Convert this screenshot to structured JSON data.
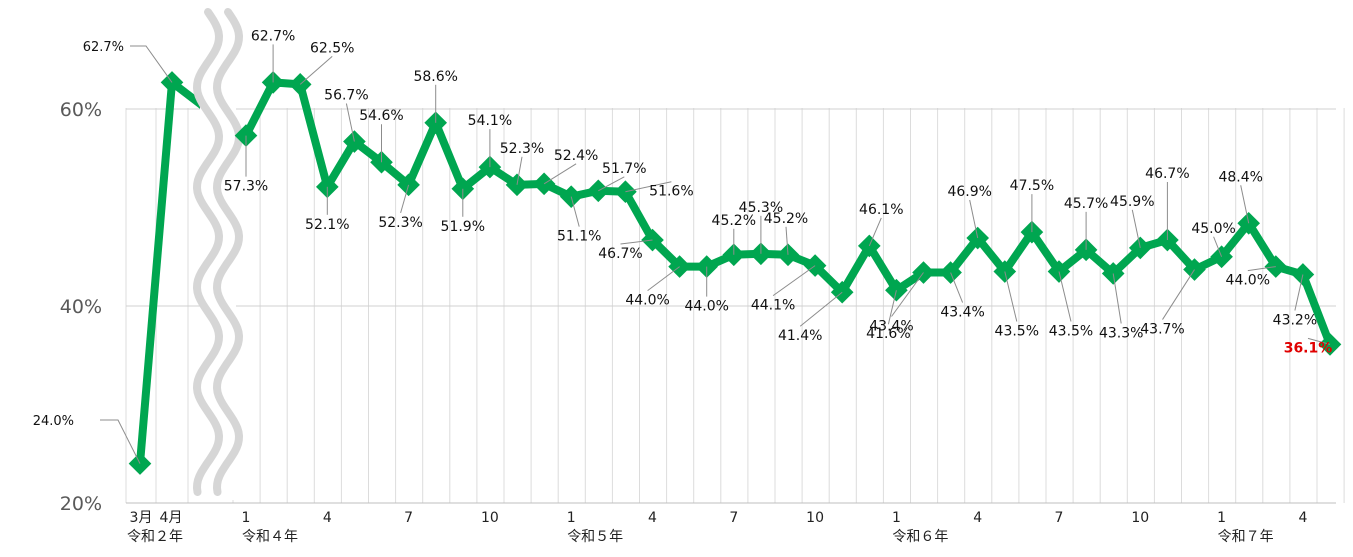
{
  "chart_data": {
    "type": "line",
    "colors": {
      "line": "#00a650",
      "grid": "#d0d0d0",
      "break": "#d6d6d6",
      "leader": "#8c8c8c",
      "highlight": "#e00000"
    },
    "y_ticks": [
      "20%",
      "40%",
      "60%"
    ],
    "ylim": [
      20,
      64
    ],
    "axis_break": true,
    "grid": true,
    "left_segment": {
      "categories": [
        "3月",
        "4月"
      ],
      "year_label": "令和２年",
      "values": [
        24.0,
        62.7
      ],
      "labels": [
        "24.0%",
        "62.7%"
      ]
    },
    "main_segment": {
      "x_tick_labels": [
        "1",
        "4",
        "7",
        "10",
        "1",
        "4",
        "7",
        "10",
        "1",
        "4",
        "7",
        "10",
        "1",
        "4"
      ],
      "year_labels": [
        "令和４年",
        "令和５年",
        "令和６年",
        "令和７年"
      ],
      "values": [
        57.3,
        62.7,
        62.5,
        52.1,
        56.7,
        54.6,
        52.3,
        58.6,
        51.9,
        54.1,
        52.3,
        52.4,
        51.1,
        51.7,
        51.6,
        46.7,
        44.0,
        44.0,
        45.2,
        45.3,
        45.2,
        44.1,
        41.4,
        46.1,
        41.6,
        43.4,
        43.4,
        46.9,
        43.5,
        47.5,
        43.5,
        45.7,
        43.3,
        45.9,
        46.7,
        43.7,
        45.0,
        48.4,
        44.0,
        43.2,
        36.1
      ],
      "labels": [
        "57.3%",
        "62.7%",
        "62.5%",
        "52.1%",
        "56.7%",
        "54.6%",
        "52.3%",
        "58.6%",
        "51.9%",
        "54.1%",
        "52.3%",
        "52.4%",
        "51.1%",
        "51.7%",
        "51.6%",
        "46.7%",
        "44.0%",
        "44.0%",
        "45.2%",
        "45.3%",
        "45.2%",
        "44.1%",
        "41.4%",
        "46.1%",
        "41.6%",
        "43.4%",
        "43.4%",
        "46.9%",
        "43.5%",
        "47.5%",
        "43.5%",
        "45.7%",
        "43.3%",
        "45.9%",
        "46.7%",
        "43.7%",
        "45.0%",
        "48.4%",
        "44.0%",
        "43.2%",
        "36.1%"
      ]
    }
  }
}
